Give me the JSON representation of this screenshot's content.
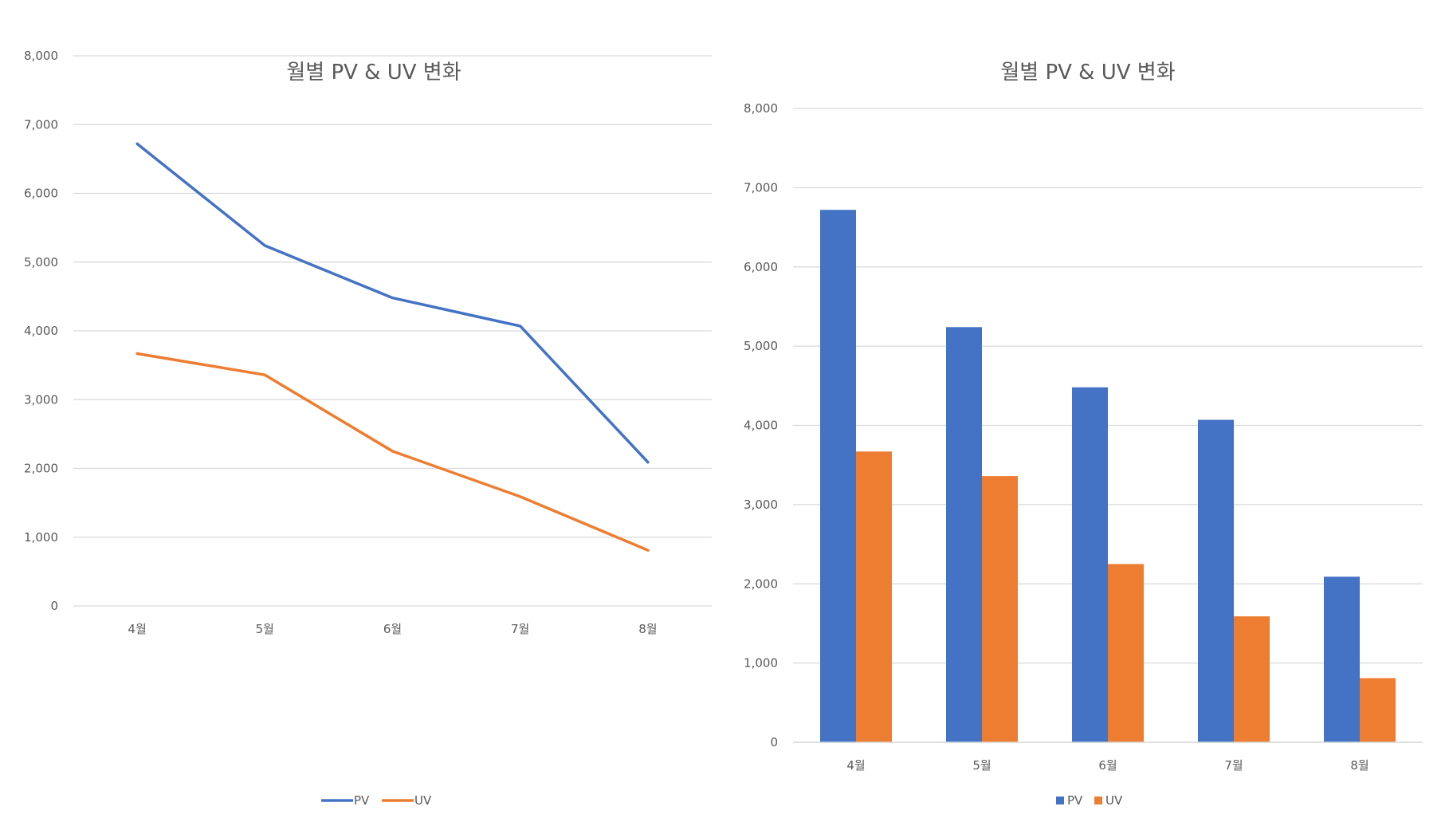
{
  "chart_data": [
    {
      "type": "line",
      "title": "월별 PV & UV 변화",
      "categories": [
        "4월",
        "5월",
        "6월",
        "7월",
        "8월"
      ],
      "series": [
        {
          "name": "PV",
          "values": [
            6720,
            5240,
            4480,
            4070,
            2090
          ],
          "color": "#4472C4"
        },
        {
          "name": "UV",
          "values": [
            3670,
            3360,
            2250,
            1590,
            810
          ],
          "color": "#ED7D31"
        }
      ],
      "ylim": [
        0,
        8000
      ],
      "yticks": [
        "0",
        "1,000",
        "2,000",
        "3,000",
        "4,000",
        "5,000",
        "6,000",
        "7,000",
        "8,000"
      ],
      "grid": true,
      "legend": "bottom"
    },
    {
      "type": "bar",
      "title": "월별 PV & UV 변화",
      "categories": [
        "4월",
        "5월",
        "6월",
        "7월",
        "8월"
      ],
      "series": [
        {
          "name": "PV",
          "values": [
            6720,
            5240,
            4480,
            4070,
            2090
          ],
          "color": "#4472C4"
        },
        {
          "name": "UV",
          "values": [
            3670,
            3360,
            2250,
            1590,
            810
          ],
          "color": "#ED7D31"
        }
      ],
      "ylim": [
        0,
        8000
      ],
      "yticks": [
        "0",
        "1,000",
        "2,000",
        "3,000",
        "4,000",
        "5,000",
        "6,000",
        "7,000",
        "8,000"
      ],
      "grid": true,
      "legend": "bottom"
    }
  ]
}
